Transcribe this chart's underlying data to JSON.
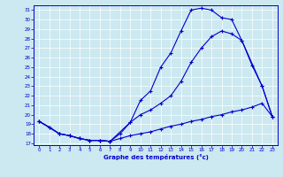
{
  "xlabel": "Graphe des températures (°c)",
  "bg_color": "#cce8f0",
  "line_color": "#0000cc",
  "xlim": [
    -0.5,
    23.5
  ],
  "ylim": [
    16.8,
    31.5
  ],
  "xticks": [
    0,
    1,
    2,
    3,
    4,
    5,
    6,
    7,
    8,
    9,
    10,
    11,
    12,
    13,
    14,
    15,
    16,
    17,
    18,
    19,
    20,
    21,
    22,
    23
  ],
  "yticks": [
    17,
    18,
    19,
    20,
    21,
    22,
    23,
    24,
    25,
    26,
    27,
    28,
    29,
    30,
    31
  ],
  "line1_x": [
    0,
    1,
    2,
    3,
    4,
    5,
    6,
    7,
    8,
    9,
    10,
    11,
    12,
    13,
    14,
    15,
    16,
    17,
    18,
    19,
    20,
    21,
    22,
    23
  ],
  "line1_y": [
    19.3,
    18.7,
    18.0,
    17.8,
    17.5,
    17.3,
    17.3,
    17.2,
    18.0,
    19.2,
    21.5,
    22.5,
    25.0,
    26.5,
    28.8,
    31.0,
    31.2,
    31.0,
    30.2,
    30.0,
    27.8,
    25.2,
    23.0,
    19.8
  ],
  "line2_x": [
    0,
    2,
    3,
    4,
    5,
    6,
    7,
    9,
    10,
    11,
    12,
    13,
    14,
    15,
    16,
    17,
    18,
    19,
    20,
    22,
    23
  ],
  "line2_y": [
    19.3,
    18.0,
    17.8,
    17.5,
    17.3,
    17.3,
    17.2,
    19.2,
    20.0,
    20.5,
    21.2,
    22.0,
    23.5,
    25.5,
    27.0,
    28.2,
    28.8,
    28.5,
    27.8,
    23.0,
    19.8
  ],
  "line3_x": [
    0,
    1,
    2,
    3,
    4,
    5,
    6,
    7,
    8,
    9,
    10,
    11,
    12,
    13,
    14,
    15,
    16,
    17,
    18,
    19,
    20,
    21,
    22,
    23
  ],
  "line3_y": [
    19.3,
    18.7,
    18.0,
    17.8,
    17.5,
    17.3,
    17.3,
    17.2,
    17.5,
    17.8,
    18.0,
    18.2,
    18.5,
    18.8,
    19.0,
    19.3,
    19.5,
    19.8,
    20.0,
    20.3,
    20.5,
    20.8,
    21.2,
    19.8
  ]
}
